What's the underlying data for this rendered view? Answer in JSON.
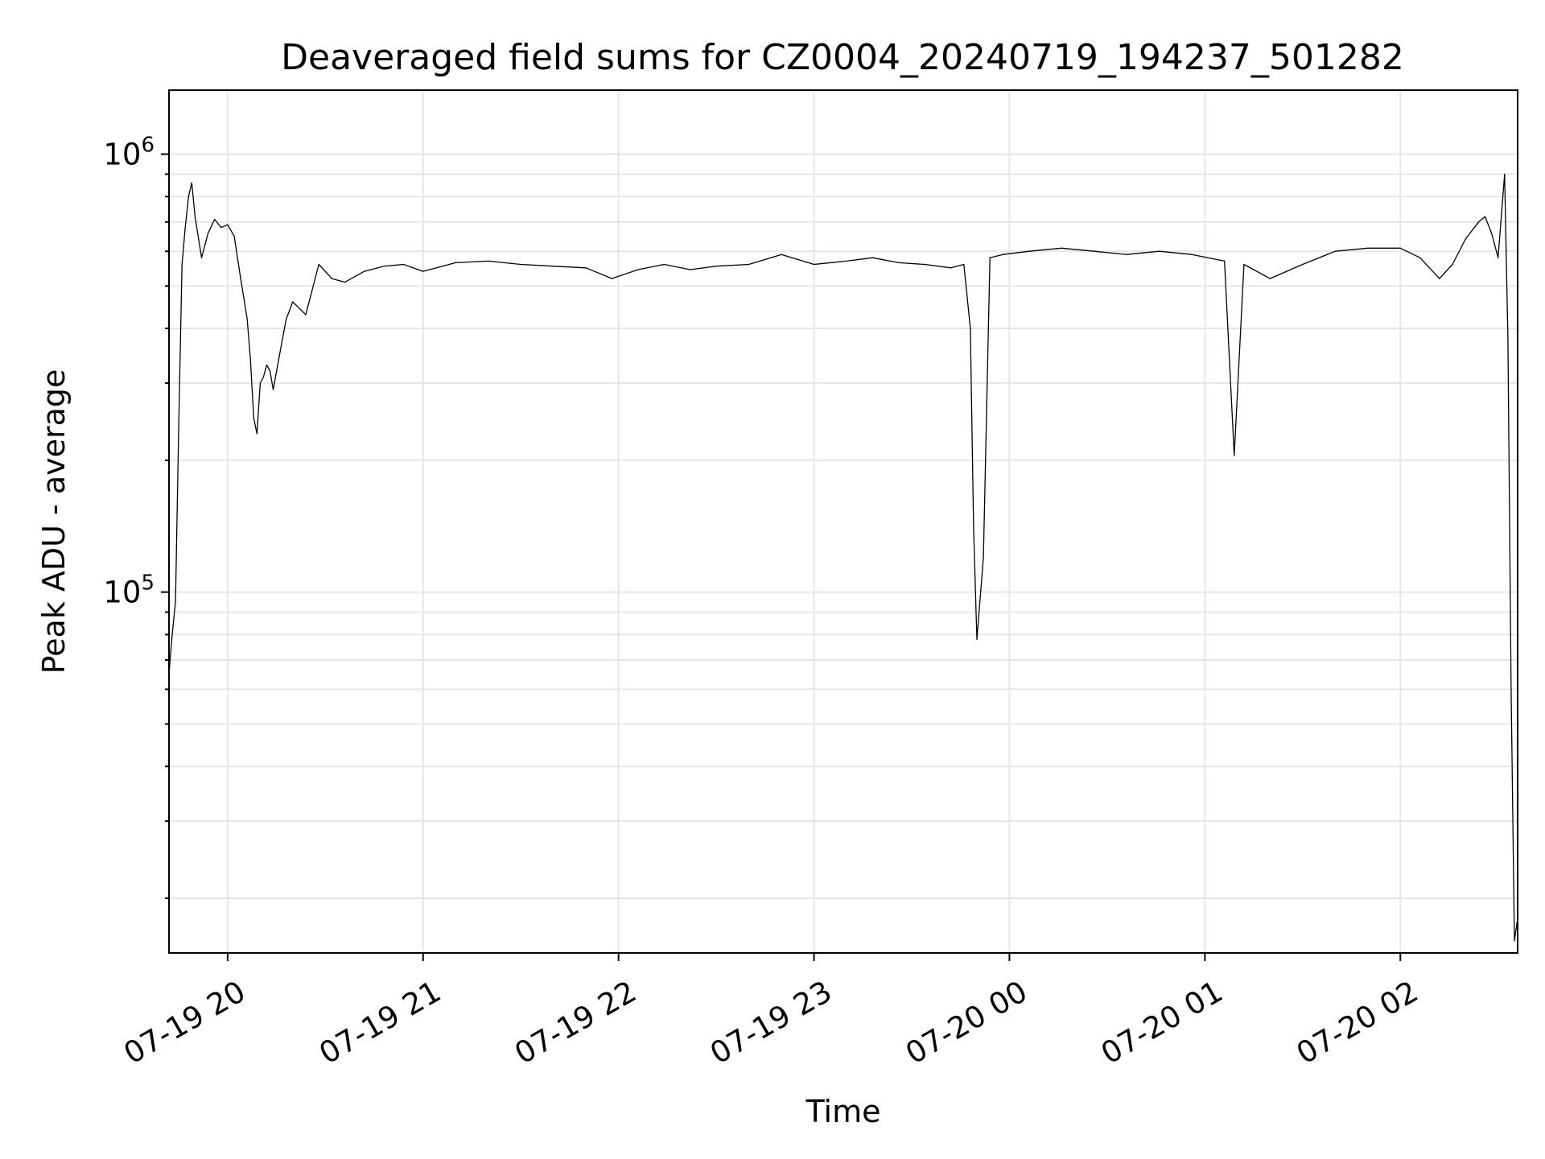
{
  "chart_data": {
    "type": "line",
    "title": "Deaveraged field sums for CZ0004_20240719_194237_501282",
    "xlabel": "Time",
    "ylabel": "Peak ADU - average",
    "yscale": "log",
    "ylim": [
      15000,
      1400000
    ],
    "xlim": [
      "2024-07-19 19:42",
      "2024-07-20 02:36"
    ],
    "grid": true,
    "x_ticks": [
      {
        "value": "2024-07-19 20:00",
        "label": "07-19 20"
      },
      {
        "value": "2024-07-19 21:00",
        "label": "07-19 21"
      },
      {
        "value": "2024-07-19 22:00",
        "label": "07-19 22"
      },
      {
        "value": "2024-07-19 23:00",
        "label": "07-19 23"
      },
      {
        "value": "2024-07-20 00:00",
        "label": "07-20 00"
      },
      {
        "value": "2024-07-20 01:00",
        "label": "07-20 01"
      },
      {
        "value": "2024-07-20 02:00",
        "label": "07-20 02"
      }
    ],
    "y_ticks": [
      {
        "value": 100000,
        "base": "10",
        "exp": "5"
      },
      {
        "value": 1000000,
        "base": "10",
        "exp": "6"
      }
    ],
    "line_color": "#000000",
    "series": [
      {
        "x": [
          "2024-07-19 19:42",
          "2024-07-19 19:43",
          "2024-07-19 19:44",
          "2024-07-19 19:45",
          "2024-07-19 19:46",
          "2024-07-19 19:47",
          "2024-07-19 19:48",
          "2024-07-19 19:49",
          "2024-07-19 19:50",
          "2024-07-19 19:52",
          "2024-07-19 19:54",
          "2024-07-19 19:56",
          "2024-07-19 19:58",
          "2024-07-19 20:00",
          "2024-07-19 20:02",
          "2024-07-19 20:04",
          "2024-07-19 20:06",
          "2024-07-19 20:07",
          "2024-07-19 20:08",
          "2024-07-19 20:09",
          "2024-07-19 20:10",
          "2024-07-19 20:11",
          "2024-07-19 20:12",
          "2024-07-19 20:13",
          "2024-07-19 20:14",
          "2024-07-19 20:16",
          "2024-07-19 20:18",
          "2024-07-19 20:20",
          "2024-07-19 20:24",
          "2024-07-19 20:28",
          "2024-07-19 20:32",
          "2024-07-19 20:36",
          "2024-07-19 20:42",
          "2024-07-19 20:48",
          "2024-07-19 20:54",
          "2024-07-19 21:00",
          "2024-07-19 21:10",
          "2024-07-19 21:20",
          "2024-07-19 21:30",
          "2024-07-19 21:40",
          "2024-07-19 21:50",
          "2024-07-19 21:58",
          "2024-07-19 22:06",
          "2024-07-19 22:14",
          "2024-07-19 22:22",
          "2024-07-19 22:30",
          "2024-07-19 22:40",
          "2024-07-19 22:50",
          "2024-07-19 23:00",
          "2024-07-19 23:10",
          "2024-07-19 23:18",
          "2024-07-19 23:26",
          "2024-07-19 23:34",
          "2024-07-19 23:42",
          "2024-07-19 23:46",
          "2024-07-19 23:48",
          "2024-07-19 23:49",
          "2024-07-19 23:50",
          "2024-07-19 23:52",
          "2024-07-19 23:54",
          "2024-07-19 23:58",
          "2024-07-20 00:06",
          "2024-07-20 00:16",
          "2024-07-20 00:26",
          "2024-07-20 00:36",
          "2024-07-20 00:46",
          "2024-07-20 00:56",
          "2024-07-20 01:06",
          "2024-07-20 01:09",
          "2024-07-20 01:12",
          "2024-07-20 01:20",
          "2024-07-20 01:30",
          "2024-07-20 01:40",
          "2024-07-20 01:50",
          "2024-07-20 02:00",
          "2024-07-20 02:06",
          "2024-07-20 02:12",
          "2024-07-20 02:16",
          "2024-07-20 02:20",
          "2024-07-20 02:24",
          "2024-07-20 02:26",
          "2024-07-20 02:28",
          "2024-07-20 02:30",
          "2024-07-20 02:32",
          "2024-07-20 02:33",
          "2024-07-20 02:34",
          "2024-07-20 02:35",
          "2024-07-20 02:36"
        ],
        "values": [
          65000,
          80000,
          95000,
          240000,
          560000,
          680000,
          800000,
          860000,
          720000,
          580000,
          660000,
          710000,
          680000,
          690000,
          650000,
          520000,
          420000,
          340000,
          250000,
          230000,
          300000,
          310000,
          330000,
          320000,
          290000,
          350000,
          420000,
          460000,
          430000,
          560000,
          520000,
          510000,
          540000,
          555000,
          560000,
          540000,
          565000,
          570000,
          560000,
          555000,
          550000,
          520000,
          545000,
          560000,
          545000,
          555000,
          560000,
          590000,
          560000,
          570000,
          580000,
          565000,
          560000,
          550000,
          560000,
          400000,
          140000,
          78000,
          120000,
          580000,
          590000,
          600000,
          610000,
          600000,
          590000,
          600000,
          590000,
          570000,
          205000,
          560000,
          520000,
          560000,
          600000,
          610000,
          610000,
          580000,
          520000,
          560000,
          640000,
          700000,
          720000,
          660000,
          580000,
          900000,
          380000,
          60000,
          16000,
          18000
        ]
      }
    ]
  }
}
